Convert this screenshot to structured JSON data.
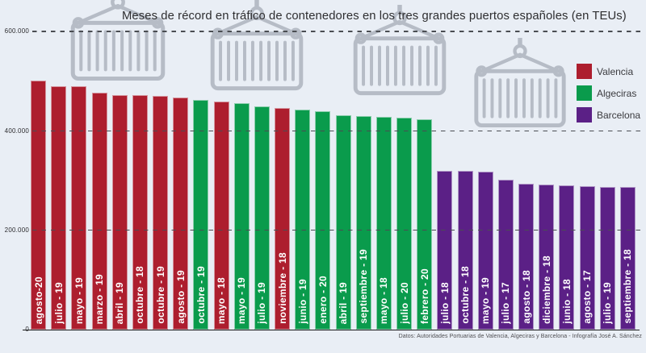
{
  "title": "Meses de récord en tráfico de contenedores en los tres grandes puertos españoles (en TEUs)",
  "source": "Datos: Autoridades Portuarias de Valencia, Algeciras y Barcelona - Infografía José A. Sánchez",
  "colors": {
    "valencia": "#ad1e2e",
    "algeciras": "#0a9b4c",
    "barcelona": "#5b2086",
    "background": "#e9eef5",
    "container_outline": "#b6bcc6",
    "gridline": "#4a4d52",
    "axis": "#1c1c1e"
  },
  "icons": {
    "decoration": "hanging-shipping-container-icon"
  },
  "legend": [
    {
      "label": "Valencia",
      "color": "#ad1e2e"
    },
    {
      "label": "Algeciras",
      "color": "#0a9b4c"
    },
    {
      "label": "Barcelona",
      "color": "#5b2086"
    }
  ],
  "y_axis": {
    "ticks": [
      {
        "label": "600.000",
        "value": 600000
      },
      {
        "label": "400.000",
        "value": 400000
      },
      {
        "label": "200.000",
        "value": 200000
      },
      {
        "label": "0",
        "value": 0
      }
    ]
  },
  "chart_data": {
    "type": "bar",
    "title": "Meses de récord en tráfico de contenedores en los tres grandes puertos españoles (en TEUs)",
    "xlabel": "",
    "ylabel": "TEUs",
    "ylim": [
      0,
      620000
    ],
    "grid": "horizontal dashed",
    "legend_position": "top-right",
    "y_tick_labels": [
      "600.000",
      "400.000",
      "200.000",
      "0"
    ],
    "bars": [
      {
        "label": "agosto-20",
        "port": "Valencia",
        "value": 502000
      },
      {
        "label": "julio - 19",
        "port": "Valencia",
        "value": 491000
      },
      {
        "label": "mayo - 19",
        "port": "Valencia",
        "value": 490000
      },
      {
        "label": "marzo - 19",
        "port": "Valencia",
        "value": 478000
      },
      {
        "label": "abril - 19",
        "port": "Valencia",
        "value": 473000
      },
      {
        "label": "octubre - 18",
        "port": "Valencia",
        "value": 472000
      },
      {
        "label": "octubre - 19",
        "port": "Valencia",
        "value": 470000
      },
      {
        "label": "agosto - 19",
        "port": "Valencia",
        "value": 467000
      },
      {
        "label": "octubre - 19",
        "port": "Algeciras",
        "value": 463000
      },
      {
        "label": "mayo - 18",
        "port": "Valencia",
        "value": 460000
      },
      {
        "label": "mayo - 19",
        "port": "Algeciras",
        "value": 456000
      },
      {
        "label": "julio - 19",
        "port": "Algeciras",
        "value": 450000
      },
      {
        "label": "noviembre - 18",
        "port": "Valencia",
        "value": 446000
      },
      {
        "label": "junio - 19",
        "port": "Algeciras",
        "value": 443000
      },
      {
        "label": "enero - 20",
        "port": "Algeciras",
        "value": 440000
      },
      {
        "label": "abril - 19",
        "port": "Algeciras",
        "value": 432000
      },
      {
        "label": "septiembre - 19",
        "port": "Algeciras",
        "value": 430000
      },
      {
        "label": "mayo - 18",
        "port": "Algeciras",
        "value": 428000
      },
      {
        "label": "julio - 20",
        "port": "Algeciras",
        "value": 427000
      },
      {
        "label": "febrero - 20",
        "port": "Algeciras",
        "value": 424000
      },
      {
        "label": "julio - 18",
        "port": "Barcelona",
        "value": 320000
      },
      {
        "label": "octubre - 18",
        "port": "Barcelona",
        "value": 320000
      },
      {
        "label": "mayo - 19",
        "port": "Barcelona",
        "value": 318000
      },
      {
        "label": "julio - 17",
        "port": "Barcelona",
        "value": 302000
      },
      {
        "label": "agosto - 18",
        "port": "Barcelona",
        "value": 294000
      },
      {
        "label": "diciembre - 18",
        "port": "Barcelona",
        "value": 292000
      },
      {
        "label": "junio - 18",
        "port": "Barcelona",
        "value": 290000
      },
      {
        "label": "agosto - 17",
        "port": "Barcelona",
        "value": 289000
      },
      {
        "label": "julio - 19",
        "port": "Barcelona",
        "value": 287000
      },
      {
        "label": "septiembre - 18",
        "port": "Barcelona",
        "value": 287000
      }
    ]
  }
}
